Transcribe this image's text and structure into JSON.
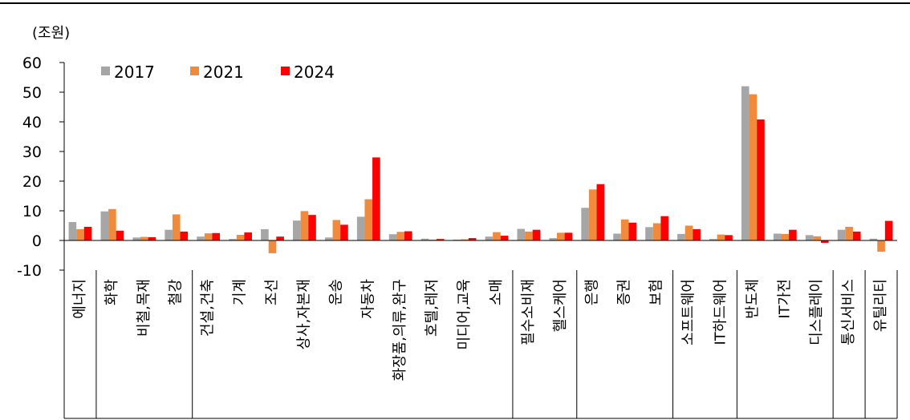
{
  "chart_data": {
    "type": "bar",
    "unit_label": "(조원)",
    "ylim": [
      -10,
      60
    ],
    "yticks": [
      "60",
      "50",
      "40",
      "30",
      "20",
      "10",
      "0",
      "-10"
    ],
    "ytick_values": [
      60,
      50,
      40,
      30,
      20,
      10,
      0,
      -10
    ],
    "categories": [
      "에너지",
      "화학",
      "비철,목재",
      "철강",
      "건설,건축",
      "기계",
      "조선",
      "상사,자본재",
      "운송",
      "자동차",
      "화장품,의류,완구",
      "호텔,레저",
      "미디어,교육",
      "소매",
      "필수소비재",
      "헬스케어",
      "은행",
      "증권",
      "보험",
      "소프트웨어",
      "IT하드웨어",
      "반도체",
      "IT가전",
      "디스플레이",
      "통신서비스",
      "유틸리티"
    ],
    "group_boundaries_after": [
      0,
      3,
      13,
      15,
      18,
      20,
      23,
      24
    ],
    "series": [
      {
        "name": "2017",
        "color": "#a6a6a6",
        "values": [
          6.2,
          9.8,
          1.0,
          3.6,
          1.3,
          0.5,
          3.8,
          6.7,
          1.0,
          8.0,
          2.1,
          0.6,
          0.3,
          1.3,
          3.9,
          0.8,
          11.0,
          2.3,
          4.5,
          2.2,
          0.5,
          52.0,
          2.3,
          1.8,
          3.6,
          0.6
        ]
      },
      {
        "name": "2021",
        "color": "#f08a3c",
        "values": [
          3.8,
          10.6,
          1.2,
          8.8,
          2.4,
          1.9,
          -4.3,
          9.9,
          6.9,
          13.9,
          2.9,
          0.3,
          0.4,
          2.8,
          3.0,
          2.6,
          17.2,
          7.1,
          5.8,
          5.0,
          2.0,
          49.3,
          2.2,
          1.4,
          4.6,
          -3.8
        ]
      },
      {
        "name": "2024",
        "color": "#ff0000",
        "values": [
          4.6,
          3.3,
          1.1,
          3.0,
          2.5,
          2.7,
          1.3,
          8.6,
          5.3,
          28.0,
          3.1,
          0.5,
          0.8,
          1.6,
          3.6,
          2.6,
          19.0,
          6.0,
          8.2,
          3.8,
          1.8,
          40.8,
          3.6,
          -0.8,
          3.0,
          6.6
        ]
      }
    ],
    "legend_position": "top-left",
    "grid": false
  }
}
